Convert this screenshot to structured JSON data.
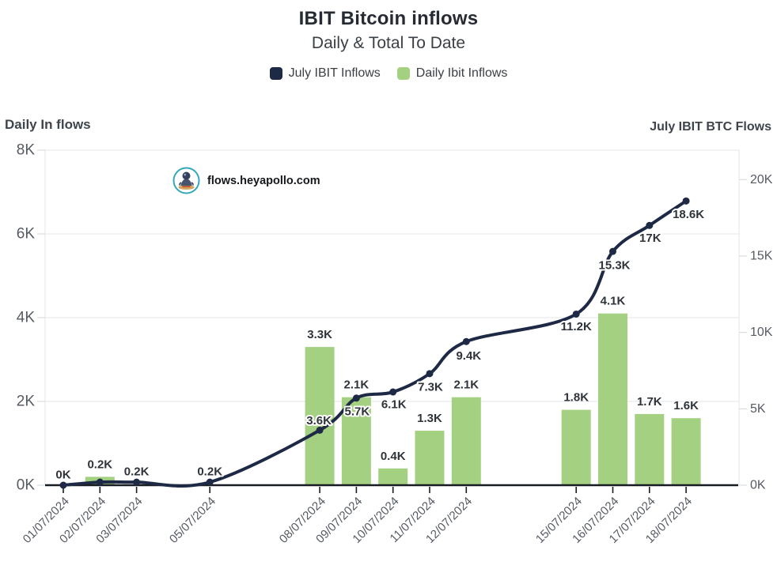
{
  "header": {
    "title": "IBIT Bitcoin inflows",
    "subtitle": "Daily & Total To Date"
  },
  "legend": {
    "items": [
      {
        "label": "July IBIT Inflows",
        "color": "#1e2a45"
      },
      {
        "label": "Daily Ibit Inflows",
        "color": "#a4d082"
      }
    ]
  },
  "axes": {
    "left_title": "Daily In flows",
    "right_title": "July IBIT BTC Flows"
  },
  "watermark": {
    "icon": "heyapollo-logo-icon",
    "text": "flows.heyapollo.com",
    "ring_color": "#35a7ba"
  },
  "chart_data": {
    "type": "combo",
    "title": "IBIT Bitcoin inflows",
    "subtitle": "Daily & Total To Date",
    "categories": [
      "01/07/2024",
      "02/07/2024",
      "03/07/2024",
      "05/07/2024",
      "08/07/2024",
      "09/07/2024",
      "10/07/2024",
      "11/07/2024",
      "12/07/2024",
      "15/07/2024",
      "16/07/2024",
      "17/07/2024",
      "18/07/2024"
    ],
    "series": [
      {
        "name": "Daily Ibit Inflows",
        "type": "bar",
        "y_axis": "left",
        "color": "#a4d082",
        "values_k": [
          0,
          0.2,
          0,
          0,
          3.3,
          2.1,
          0.4,
          1.3,
          2.1,
          1.8,
          4.1,
          1.7,
          1.6
        ],
        "labels": [
          "",
          "0.2K",
          "",
          "",
          "3.3K",
          "2.1K",
          "0.4K",
          "1.3K",
          "2.1K",
          "1.8K",
          "4.1K",
          "1.7K",
          "1.6K"
        ]
      },
      {
        "name": "July IBIT Inflows",
        "type": "line",
        "y_axis": "right",
        "color": "#1e2a45",
        "values_k": [
          0,
          0.2,
          0.2,
          0.2,
          3.6,
          5.7,
          6.1,
          7.3,
          9.4,
          11.2,
          15.3,
          17,
          18.6
        ],
        "labels": [
          "0K",
          "",
          "0.2K",
          "0.2K",
          "3.6K",
          "5.7K",
          "6.1K",
          "7.3K",
          "9.4K",
          "11.2K",
          "15.3K",
          "17K",
          "18.6K"
        ]
      }
    ],
    "left_axis": {
      "title": "Daily In flows",
      "range_k": [
        0,
        8
      ],
      "tick_values_k": [
        0,
        2,
        4,
        6,
        8
      ],
      "tick_labels": [
        "0K",
        "2K",
        "4K",
        "6K",
        "8K"
      ]
    },
    "right_axis": {
      "title": "July IBIT BTC Flows",
      "range_k": [
        0,
        20
      ],
      "tick_values_k": [
        0,
        5,
        10,
        15,
        20
      ],
      "tick_labels": [
        "0K",
        "5K",
        "10K",
        "15K",
        "20K"
      ]
    },
    "grid": "horizontal-on-left-ticks",
    "legend_position": "top-center",
    "x_axis_style": "time-scale, rotated labels -45deg"
  }
}
